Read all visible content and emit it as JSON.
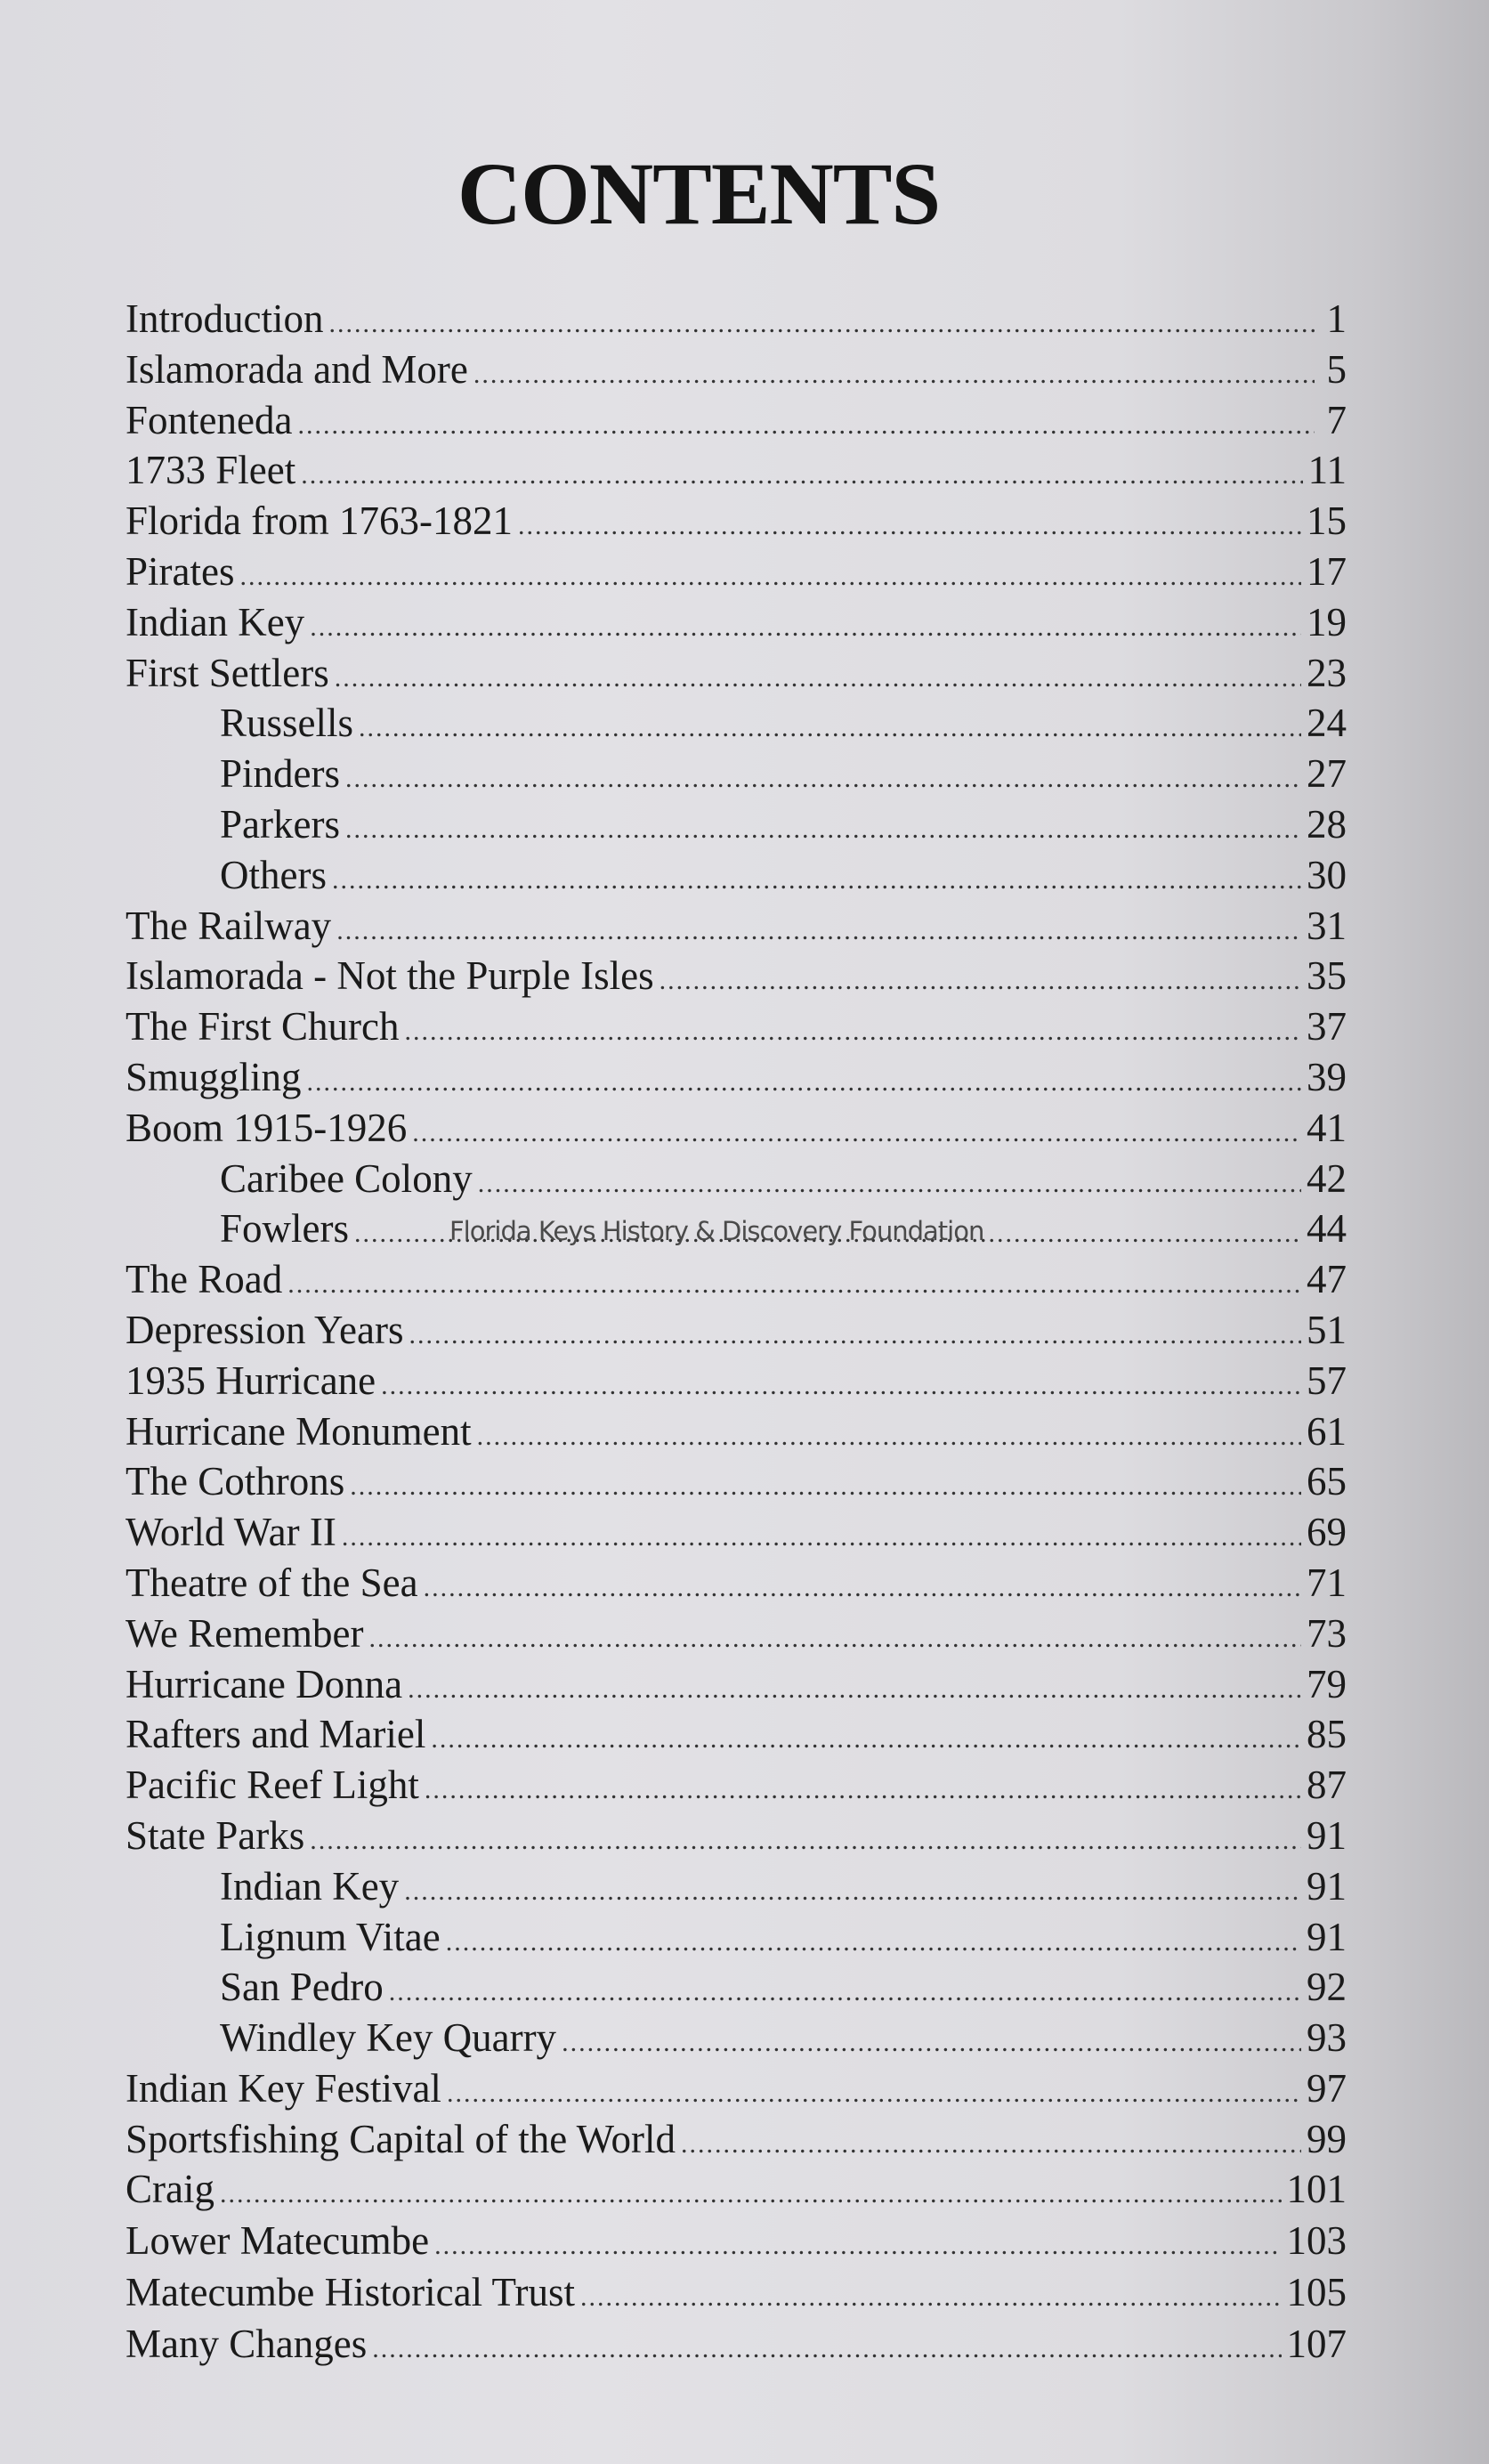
{
  "title": "CONTENTS",
  "watermark": "Florida Keys History & Discovery Foundation",
  "entries": [
    {
      "label": "Introduction",
      "page": "1",
      "level": 0
    },
    {
      "label": "Islamorada and More",
      "page": "5",
      "level": 0
    },
    {
      "label": "Fonteneda",
      "page": "7",
      "level": 0
    },
    {
      "label": "1733 Fleet",
      "page": "11",
      "level": 0
    },
    {
      "label": "Florida from 1763-1821",
      "page": "15",
      "level": 0
    },
    {
      "label": "Pirates",
      "page": "17",
      "level": 0
    },
    {
      "label": "Indian Key",
      "page": "19",
      "level": 0
    },
    {
      "label": "First Settlers",
      "page": "23",
      "level": 0
    },
    {
      "label": "Russells",
      "page": "24",
      "level": 1
    },
    {
      "label": "Pinders",
      "page": "27",
      "level": 1
    },
    {
      "label": "Parkers",
      "page": "28",
      "level": 1
    },
    {
      "label": "Others",
      "page": "30",
      "level": 1
    },
    {
      "label": "The Railway",
      "page": "31",
      "level": 0
    },
    {
      "label": "Islamorada - Not the Purple Isles",
      "page": "35",
      "level": 0
    },
    {
      "label": "The First Church",
      "page": "37",
      "level": 0
    },
    {
      "label": "Smuggling",
      "page": "39",
      "level": 0
    },
    {
      "label": "Boom 1915-1926",
      "page": "41",
      "level": 0
    },
    {
      "label": "Caribee Colony",
      "page": "42",
      "level": 1
    },
    {
      "label": "Fowlers",
      "page": "44",
      "level": 1
    },
    {
      "label": "The Road",
      "page": "47",
      "level": 0
    },
    {
      "label": "Depression Years",
      "page": "51",
      "level": 0
    },
    {
      "label": "1935 Hurricane",
      "page": "57",
      "level": 0
    },
    {
      "label": "Hurricane Monument",
      "page": "61",
      "level": 0
    },
    {
      "label": "The Cothrons",
      "page": "65",
      "level": 0
    },
    {
      "label": "World War II",
      "page": "69",
      "level": 0
    },
    {
      "label": "Theatre of the Sea",
      "page": "71",
      "level": 0
    },
    {
      "label": "We Remember",
      "page": "73",
      "level": 0
    },
    {
      "label": "Hurricane Donna",
      "page": "79",
      "level": 0
    },
    {
      "label": "Rafters and Mariel",
      "page": "85",
      "level": 0
    },
    {
      "label": "Pacific Reef Light",
      "page": "87",
      "level": 0
    },
    {
      "label": "State Parks",
      "page": "91",
      "level": 0
    },
    {
      "label": "Indian Key",
      "page": "91",
      "level": 1
    },
    {
      "label": "Lignum Vitae",
      "page": "91",
      "level": 1
    },
    {
      "label": "San Pedro",
      "page": "92",
      "level": 1
    },
    {
      "label": "Windley Key Quarry",
      "page": "93",
      "level": 1
    },
    {
      "label": "Indian Key Festival",
      "page": "97",
      "level": 0
    },
    {
      "label": "Sportsfishing Capital of the World",
      "page": "99",
      "level": 0
    },
    {
      "label": "Craig",
      "page": "101",
      "level": 0
    },
    {
      "label": "Lower Matecumbe",
      "page": "103",
      "level": 0
    },
    {
      "label": "Matecumbe Historical Trust",
      "page": "105",
      "level": 0
    },
    {
      "label": "Many Changes",
      "page": "107",
      "level": 0
    }
  ]
}
